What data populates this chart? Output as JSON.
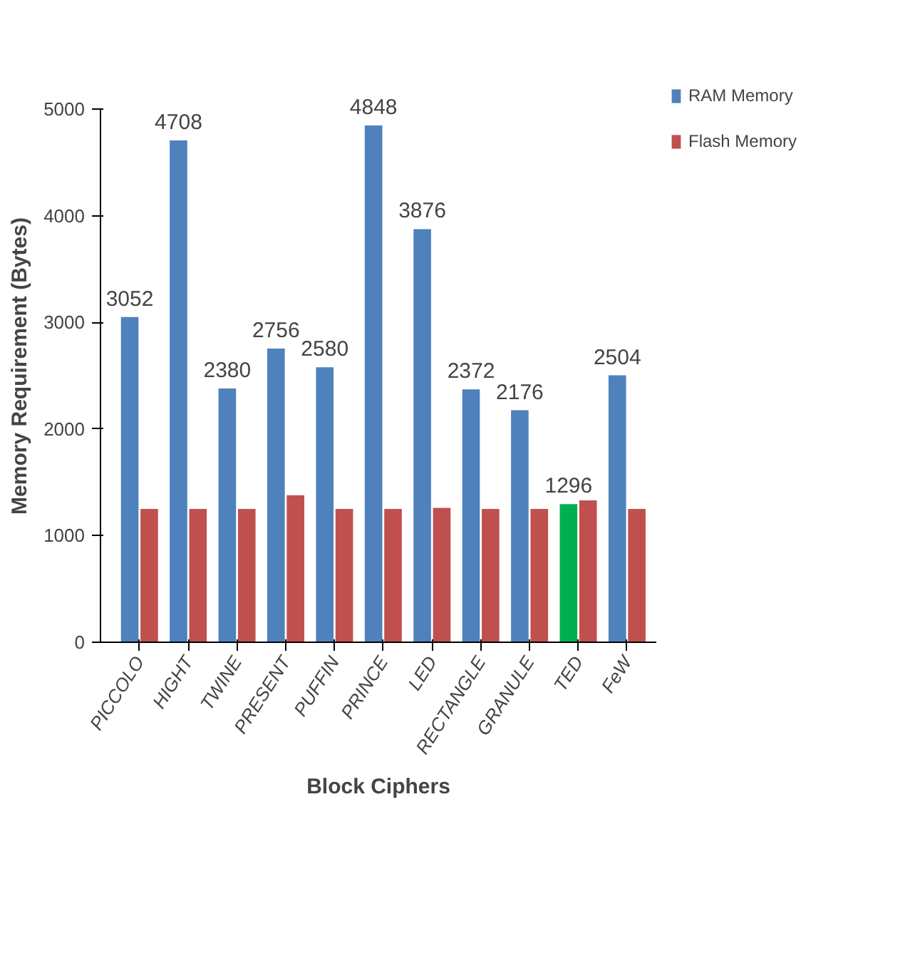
{
  "chart_data": {
    "type": "bar",
    "xlabel": "Block Ciphers",
    "ylabel": "Memory    Requirement (Bytes)",
    "categories": [
      "PICCOLO",
      "HIGHT",
      "TWINE",
      "PRESENT",
      "PUFFIN",
      "PRINCE",
      "LED",
      "RECTANGLE",
      "GRANULE",
      "TED",
      "FeW"
    ],
    "series": [
      {
        "name": "RAM Memory",
        "color": "#4f81bd",
        "colors": [
          "#4f81bd",
          "#4f81bd",
          "#4f81bd",
          "#4f81bd",
          "#4f81bd",
          "#4f81bd",
          "#4f81bd",
          "#4f81bd",
          "#4f81bd",
          "#00b050",
          "#4f81bd"
        ],
        "values": [
          3052,
          4708,
          2380,
          2756,
          2580,
          4848,
          3876,
          2372,
          2176,
          1296,
          2504
        ],
        "value_labels": [
          "3052",
          "4708",
          "2380",
          "2756",
          "2580",
          "4848",
          "3876",
          "2372",
          "2176",
          "1296",
          "2504"
        ]
      },
      {
        "name": "Flash Memory",
        "color": "#c0504d",
        "values": [
          1250,
          1250,
          1250,
          1380,
          1250,
          1250,
          1260,
          1250,
          1250,
          1330,
          1250
        ]
      }
    ],
    "ylim": [
      0,
      5000
    ],
    "yticks": [
      0,
      1000,
      2000,
      3000,
      4000,
      5000
    ],
    "grid": false,
    "legend": "right"
  }
}
